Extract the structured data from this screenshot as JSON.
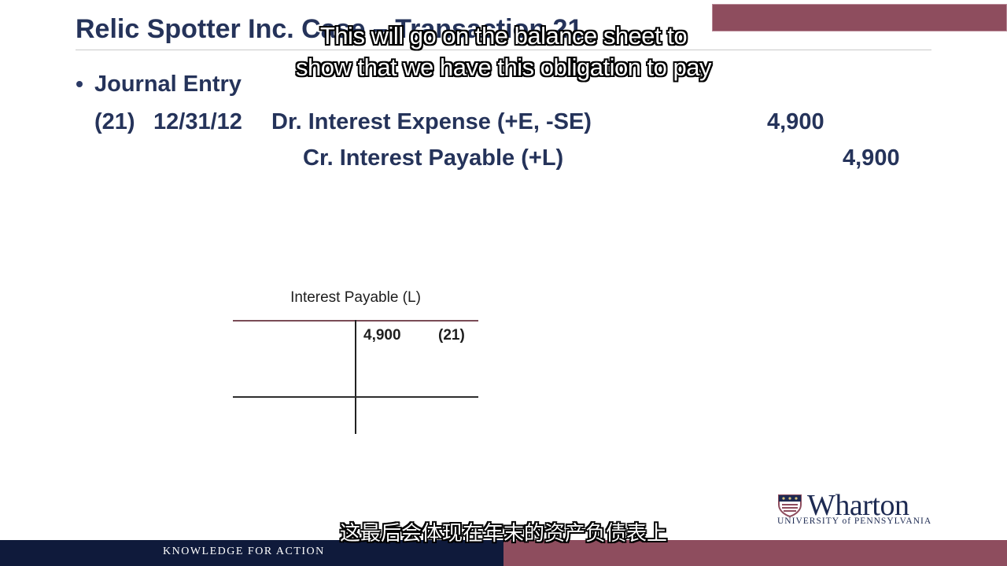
{
  "slide": {
    "title": "Relic Spotter Inc. Case – Transaction 21",
    "bullet": "Journal Entry"
  },
  "subtitles": {
    "english_line_1": "This will go on the balance sheet to",
    "english_line_2": "show that we have this obligation to pay",
    "chinese": "这最后会体现在年末的资产负债表上"
  },
  "journal_entry": {
    "number": "(21)",
    "date": "12/31/12",
    "debit_label": "Dr. Interest Expense (+E, -SE)",
    "debit_amount": "4,900",
    "credit_label": "Cr. Interest Payable (+L)",
    "credit_amount": "4,900"
  },
  "t_account": {
    "title": "Interest Payable (L)",
    "credit_entry_amount": "4,900",
    "credit_entry_ref": "(21)"
  },
  "logo": {
    "name": "Wharton",
    "subtitle": "UNIVERSITY of PENNSYLVANIA"
  },
  "footer": {
    "tagline": "KNOWLEDGE FOR ACTION"
  },
  "colors": {
    "navy": "#0f1a3b",
    "maroon": "#8e4d5e",
    "title_blue": "#25335a"
  }
}
